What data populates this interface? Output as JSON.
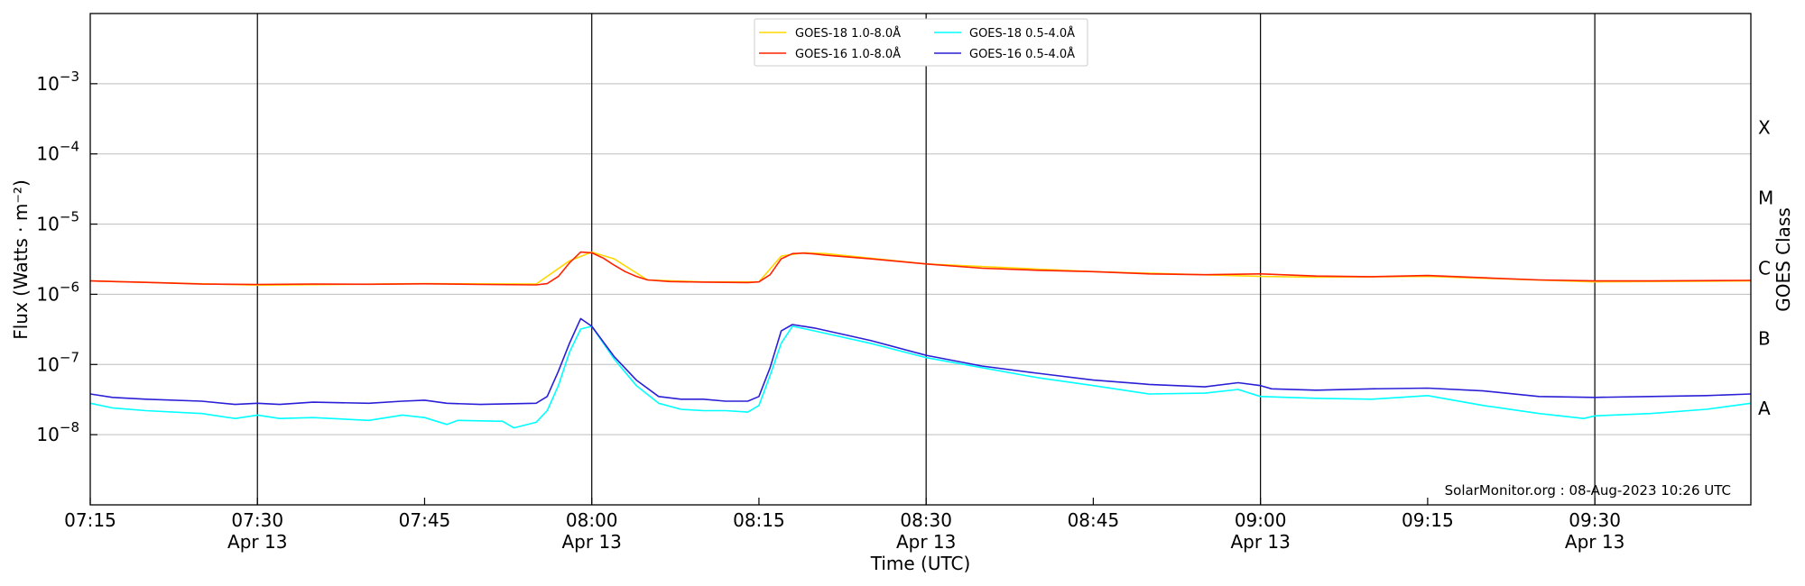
{
  "chart_data": {
    "type": "line",
    "xlabel": "Time (UTC)",
    "ylabel": "Flux (Watts · m⁻²)",
    "y2label": "GOES Class",
    "yscale": "log",
    "ylim": [
      1e-09,
      0.01
    ],
    "xlim": [
      "07:15",
      "09:44"
    ],
    "date": "Apr 13",
    "x_ticks": [
      {
        "time": "07:15",
        "date": ""
      },
      {
        "time": "07:30",
        "date": "Apr 13"
      },
      {
        "time": "07:45",
        "date": ""
      },
      {
        "time": "08:00",
        "date": "Apr 13"
      },
      {
        "time": "08:15",
        "date": ""
      },
      {
        "time": "08:30",
        "date": "Apr 13"
      },
      {
        "time": "08:45",
        "date": ""
      },
      {
        "time": "09:00",
        "date": "Apr 13"
      },
      {
        "time": "09:15",
        "date": ""
      },
      {
        "time": "09:30",
        "date": "Apr 13"
      }
    ],
    "vertical_lines": [
      "07:30",
      "08:00",
      "08:30",
      "09:00",
      "09:30"
    ],
    "y_ticks": [
      {
        "value": 1e-08,
        "base": "10",
        "exp": "−8"
      },
      {
        "value": 1e-07,
        "base": "10",
        "exp": "−7"
      },
      {
        "value": 1e-06,
        "base": "10",
        "exp": "−6"
      },
      {
        "value": 1e-05,
        "base": "10",
        "exp": "−5"
      },
      {
        "value": 0.0001,
        "base": "10",
        "exp": "−4"
      },
      {
        "value": 0.001,
        "base": "10",
        "exp": "−3"
      }
    ],
    "goes_classes": [
      {
        "label": "A",
        "value": 1e-08
      },
      {
        "label": "B",
        "value": 1e-07
      },
      {
        "label": "C",
        "value": 1e-06
      },
      {
        "label": "M",
        "value": 1e-05
      },
      {
        "label": "X",
        "value": 0.0001
      }
    ],
    "grid": true,
    "legend_position": "top-center",
    "credit": "SolarMonitor.org : 08-Aug-2023 10:26 UTC",
    "series": [
      {
        "name": "GOES-18 1.0-8.0Å",
        "color": "#ffd700",
        "x": [
          "07:15",
          "07:30",
          "07:45",
          "07:55",
          "07:58",
          "08:00",
          "08:02",
          "08:05",
          "08:10",
          "08:15",
          "08:17",
          "08:19",
          "08:21",
          "08:30",
          "08:45",
          "09:00",
          "09:05",
          "09:15",
          "09:30",
          "09:44"
        ],
        "values": [
          1.55e-06,
          1.35e-06,
          1.42e-06,
          1.4e-06,
          3e-06,
          4e-06,
          3.2e-06,
          1.6e-06,
          1.5e-06,
          1.5e-06,
          3.5e-06,
          3.9e-06,
          3.8e-06,
          2.7e-06,
          2.1e-06,
          1.8e-06,
          1.75e-06,
          1.8e-06,
          1.5e-06,
          1.55e-06
        ]
      },
      {
        "name": "GOES-16 1.0-8.0Å",
        "color": "#ff2200",
        "x": [
          "07:15",
          "07:20",
          "07:25",
          "07:30",
          "07:35",
          "07:40",
          "07:45",
          "07:50",
          "07:55",
          "07:56",
          "07:57",
          "07:58",
          "07:59",
          "08:00",
          "08:01",
          "08:02",
          "08:03",
          "08:04",
          "08:05",
          "08:07",
          "08:10",
          "08:14",
          "08:15",
          "08:16",
          "08:17",
          "08:18",
          "08:19",
          "08:20",
          "08:21",
          "08:25",
          "08:30",
          "08:35",
          "08:40",
          "08:45",
          "08:50",
          "08:55",
          "09:00",
          "09:05",
          "09:10",
          "09:15",
          "09:20",
          "09:25",
          "09:30",
          "09:35",
          "09:44"
        ],
        "values": [
          1.55e-06,
          1.48e-06,
          1.4e-06,
          1.38e-06,
          1.4e-06,
          1.39e-06,
          1.41e-06,
          1.38e-06,
          1.36e-06,
          1.42e-06,
          1.8e-06,
          2.8e-06,
          4e-06,
          3.9e-06,
          3.3e-06,
          2.6e-06,
          2.1e-06,
          1.8e-06,
          1.6e-06,
          1.52e-06,
          1.49e-06,
          1.47e-06,
          1.5e-06,
          1.9e-06,
          3.2e-06,
          3.8e-06,
          3.85e-06,
          3.75e-06,
          3.6e-06,
          3.2e-06,
          2.7e-06,
          2.35e-06,
          2.2e-06,
          2.1e-06,
          1.95e-06,
          1.9e-06,
          1.95e-06,
          1.82e-06,
          1.78e-06,
          1.85e-06,
          1.72e-06,
          1.6e-06,
          1.55e-06,
          1.55e-06,
          1.58e-06
        ]
      },
      {
        "name": "GOES-18 0.5-4.0Å",
        "color": "#00ffff",
        "x": [
          "07:15",
          "07:17",
          "07:20",
          "07:25",
          "07:28",
          "07:30",
          "07:32",
          "07:35",
          "07:40",
          "07:43",
          "07:45",
          "07:47",
          "07:48",
          "07:52",
          "07:53",
          "07:55",
          "07:56",
          "07:57",
          "07:58",
          "07:59",
          "08:00",
          "08:02",
          "08:04",
          "08:06",
          "08:08",
          "08:10",
          "08:12",
          "08:14",
          "08:15",
          "08:16",
          "08:17",
          "08:18",
          "08:20",
          "08:25",
          "08:30",
          "08:35",
          "08:40",
          "08:45",
          "08:50",
          "08:55",
          "08:58",
          "09:00",
          "09:05",
          "09:10",
          "09:15",
          "09:20",
          "09:25",
          "09:29",
          "09:30",
          "09:35",
          "09:40",
          "09:44"
        ],
        "values": [
          2.8e-08,
          2.4e-08,
          2.2e-08,
          2e-08,
          1.7e-08,
          1.9e-08,
          1.7e-08,
          1.75e-08,
          1.6e-08,
          1.9e-08,
          1.75e-08,
          1.4e-08,
          1.6e-08,
          1.55e-08,
          1.25e-08,
          1.5e-08,
          2.2e-08,
          5e-08,
          1.5e-07,
          3.2e-07,
          3.5e-07,
          1.2e-07,
          5e-08,
          2.8e-08,
          2.3e-08,
          2.2e-08,
          2.2e-08,
          2.1e-08,
          2.6e-08,
          7e-08,
          2e-07,
          3.5e-07,
          3e-07,
          2e-07,
          1.25e-07,
          9e-08,
          6.5e-08,
          5e-08,
          3.8e-08,
          3.9e-08,
          4.4e-08,
          3.5e-08,
          3.3e-08,
          3.2e-08,
          3.6e-08,
          2.6e-08,
          2e-08,
          1.7e-08,
          1.85e-08,
          2e-08,
          2.3e-08,
          2.8e-08
        ]
      },
      {
        "name": "GOES-16 0.5-4.0Å",
        "color": "#2a1fd6",
        "x": [
          "07:15",
          "07:17",
          "07:20",
          "07:25",
          "07:28",
          "07:30",
          "07:32",
          "07:35",
          "07:40",
          "07:43",
          "07:45",
          "07:47",
          "07:50",
          "07:55",
          "07:56",
          "07:57",
          "07:58",
          "07:59",
          "08:00",
          "08:02",
          "08:04",
          "08:06",
          "08:08",
          "08:10",
          "08:12",
          "08:14",
          "08:15",
          "08:16",
          "08:17",
          "08:18",
          "08:20",
          "08:25",
          "08:30",
          "08:35",
          "08:40",
          "08:45",
          "08:50",
          "08:55",
          "08:58",
          "09:00",
          "09:01",
          "09:05",
          "09:10",
          "09:15",
          "09:20",
          "09:25",
          "09:30",
          "09:35",
          "09:40",
          "09:44"
        ],
        "values": [
          3.8e-08,
          3.4e-08,
          3.2e-08,
          3e-08,
          2.7e-08,
          2.8e-08,
          2.7e-08,
          2.9e-08,
          2.8e-08,
          3e-08,
          3.1e-08,
          2.8e-08,
          2.7e-08,
          2.8e-08,
          3.5e-08,
          8e-08,
          2e-07,
          4.5e-07,
          3.5e-07,
          1.3e-07,
          6e-08,
          3.5e-08,
          3.2e-08,
          3.2e-08,
          3e-08,
          3e-08,
          3.5e-08,
          9e-08,
          3e-07,
          3.7e-07,
          3.3e-07,
          2.2e-07,
          1.35e-07,
          9.5e-08,
          7.5e-08,
          6e-08,
          5.2e-08,
          4.8e-08,
          5.5e-08,
          5e-08,
          4.5e-08,
          4.3e-08,
          4.5e-08,
          4.6e-08,
          4.2e-08,
          3.5e-08,
          3.4e-08,
          3.5e-08,
          3.6e-08,
          3.8e-08
        ]
      }
    ]
  }
}
